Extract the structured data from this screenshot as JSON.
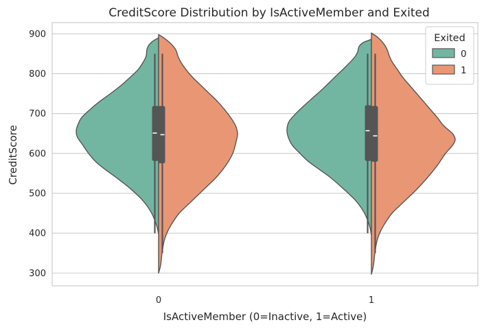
{
  "chart_data": {
    "type": "violin",
    "title": "CreditScore Distribution by IsActiveMember and Exited",
    "xlabel": "IsActiveMember (0=Inactive, 1=Active)",
    "ylabel": "CreditScore",
    "categories": [
      "0",
      "1"
    ],
    "yticks": [
      300,
      400,
      500,
      600,
      700,
      800,
      900
    ],
    "ylim": [
      268,
      928
    ],
    "grid": true,
    "split": true,
    "legend": {
      "title": "Exited",
      "position": "top-right",
      "entries": [
        "0",
        "1"
      ]
    },
    "series": [
      {
        "name": "0",
        "color": "#72B6A1",
        "side": "left",
        "groups": [
          {
            "category": "0",
            "range": [
              398,
              890
            ],
            "q1": 582,
            "median": 651,
            "q3": 718,
            "whisker": [
              400,
              850
            ],
            "density": [
              [
                398,
                0
              ],
              [
                420,
                3
              ],
              [
                450,
                10
              ],
              [
                480,
                22
              ],
              [
                510,
                40
              ],
              [
                540,
                62
              ],
              [
                560,
                78
              ],
              [
                580,
                92
              ],
              [
                600,
                102
              ],
              [
                620,
                110
              ],
              [
                640,
                118
              ],
              [
                655,
                120
              ],
              [
                670,
                118
              ],
              [
                690,
                112
              ],
              [
                710,
                100
              ],
              [
                730,
                86
              ],
              [
                750,
                70
              ],
              [
                770,
                55
              ],
              [
                790,
                42
              ],
              [
                810,
                30
              ],
              [
                830,
                22
              ],
              [
                845,
                18
              ],
              [
                860,
                17
              ],
              [
                872,
                14
              ],
              [
                882,
                8
              ],
              [
                890,
                0
              ]
            ]
          },
          {
            "category": "1",
            "range": [
              395,
              886
            ],
            "q1": 582,
            "median": 657,
            "q3": 720,
            "whisker": [
              400,
              850
            ],
            "density": [
              [
                395,
                0
              ],
              [
                420,
                3
              ],
              [
                450,
                10
              ],
              [
                480,
                22
              ],
              [
                510,
                40
              ],
              [
                540,
                60
              ],
              [
                560,
                76
              ],
              [
                580,
                92
              ],
              [
                600,
                104
              ],
              [
                620,
                115
              ],
              [
                640,
                121
              ],
              [
                660,
                123
              ],
              [
                680,
                120
              ],
              [
                700,
                110
              ],
              [
                720,
                98
              ],
              [
                740,
                85
              ],
              [
                760,
                72
              ],
              [
                780,
                60
              ],
              [
                800,
                48
              ],
              [
                820,
                36
              ],
              [
                840,
                25
              ],
              [
                855,
                20
              ],
              [
                868,
                18
              ],
              [
                878,
                12
              ],
              [
                886,
                0
              ]
            ]
          }
        ]
      },
      {
        "name": "1",
        "color": "#E99675",
        "side": "right",
        "groups": [
          {
            "category": "0",
            "range": [
              300,
              898
            ],
            "q1": 576,
            "median": 647,
            "q3": 718,
            "whisker": [
              350,
              850
            ],
            "density": [
              [
                300,
                0
              ],
              [
                320,
                3
              ],
              [
                350,
                5
              ],
              [
                380,
                8
              ],
              [
                400,
                12
              ],
              [
                420,
                18
              ],
              [
                450,
                30
              ],
              [
                480,
                48
              ],
              [
                510,
                66
              ],
              [
                540,
                84
              ],
              [
                570,
                98
              ],
              [
                600,
                108
              ],
              [
                630,
                113
              ],
              [
                650,
                115
              ],
              [
                670,
                112
              ],
              [
                690,
                105
              ],
              [
                710,
                96
              ],
              [
                730,
                86
              ],
              [
                750,
                74
              ],
              [
                770,
                62
              ],
              [
                790,
                50
              ],
              [
                810,
                40
              ],
              [
                830,
                32
              ],
              [
                845,
                28
              ],
              [
                860,
                25
              ],
              [
                875,
                18
              ],
              [
                888,
                9
              ],
              [
                898,
                0
              ]
            ]
          },
          {
            "category": "1",
            "range": [
              297,
              902
            ],
            "q1": 580,
            "median": 644,
            "q3": 718,
            "whisker": [
              350,
              850
            ],
            "density": [
              [
                297,
                0
              ],
              [
                320,
                3
              ],
              [
                350,
                5
              ],
              [
                380,
                8
              ],
              [
                400,
                12
              ],
              [
                420,
                18
              ],
              [
                450,
                30
              ],
              [
                480,
                48
              ],
              [
                510,
                66
              ],
              [
                540,
                82
              ],
              [
                570,
                96
              ],
              [
                600,
                108
              ],
              [
                620,
                118
              ],
              [
                635,
                122
              ],
              [
                650,
                118
              ],
              [
                670,
                105
              ],
              [
                690,
                96
              ],
              [
                710,
                86
              ],
              [
                730,
                76
              ],
              [
                750,
                66
              ],
              [
                770,
                56
              ],
              [
                790,
                46
              ],
              [
                810,
                38
              ],
              [
                830,
                30
              ],
              [
                845,
                26
              ],
              [
                860,
                23
              ],
              [
                875,
                18
              ],
              [
                890,
                10
              ],
              [
                902,
                0
              ]
            ]
          }
        ]
      }
    ]
  }
}
